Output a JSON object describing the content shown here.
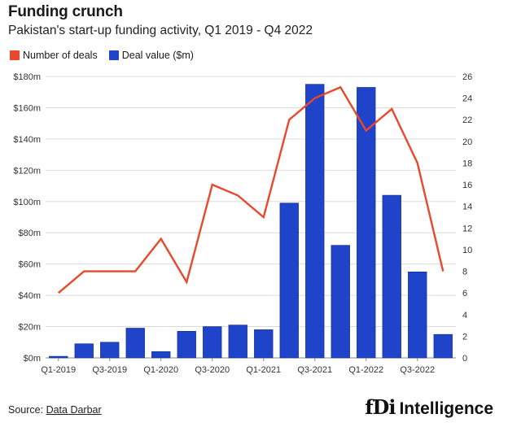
{
  "header": {
    "title": "Funding crunch",
    "subtitle": "Pakistan's start-up funding activity, Q1 2019 - Q4 2022"
  },
  "legend": {
    "items": [
      {
        "label": "Number of deals",
        "color": "#e8482b"
      },
      {
        "label": "Deal value ($m)",
        "color": "#1f43c9"
      }
    ]
  },
  "footer": {
    "source_prefix": "Source: ",
    "source_name": "Data Darbar",
    "brand_mark": "fDi",
    "brand_text": "Intelligence"
  },
  "chart_data": {
    "type": "bar",
    "title": "Funding crunch",
    "subtitle": "Pakistan's start-up funding activity, Q1 2019 - Q4 2022",
    "categories": [
      "Q1-2019",
      "Q2-2019",
      "Q3-2019",
      "Q4-2019",
      "Q1-2020",
      "Q2-2020",
      "Q3-2020",
      "Q4-2020",
      "Q1-2021",
      "Q2-2021",
      "Q3-2021",
      "Q4-2021",
      "Q1-2022",
      "Q2-2022",
      "Q3-2022",
      "Q4-2022"
    ],
    "x_tick_labels": [
      "Q1-2019",
      "Q3-2019",
      "Q1-2020",
      "Q3-2020",
      "Q1-2021",
      "Q3-2021",
      "Q1-2022",
      "Q3-2022"
    ],
    "series": [
      {
        "name": "Deal value ($m)",
        "type": "bar",
        "axis": "left",
        "color": "#1f43c9",
        "values": [
          1,
          9,
          10,
          19,
          4,
          17,
          20,
          21,
          18,
          99,
          175,
          72,
          173,
          104,
          55,
          15
        ]
      },
      {
        "name": "Number of deals",
        "type": "line",
        "axis": "right",
        "color": "#e8482b",
        "values": [
          6,
          8,
          8,
          8,
          11,
          7,
          16,
          15,
          13,
          22,
          24,
          25,
          21,
          23,
          18,
          8
        ]
      }
    ],
    "y_left": {
      "range": [
        0,
        180
      ],
      "ticks": [
        0,
        20,
        40,
        60,
        80,
        100,
        120,
        140,
        160,
        180
      ],
      "tick_labels": [
        "$0m",
        "$20m",
        "$40m",
        "$60m",
        "$80m",
        "$100m",
        "$120m",
        "$140m",
        "$160m",
        "$180m"
      ]
    },
    "y_right": {
      "range": [
        0,
        26
      ],
      "ticks": [
        0,
        2,
        4,
        6,
        8,
        10,
        12,
        14,
        16,
        18,
        20,
        22,
        24,
        26
      ],
      "tick_labels": [
        "0",
        "2",
        "4",
        "6",
        "8",
        "10",
        "12",
        "14",
        "16",
        "18",
        "20",
        "22",
        "24",
        "26"
      ]
    },
    "grid": "horizontal",
    "legend_position": "top-left"
  }
}
